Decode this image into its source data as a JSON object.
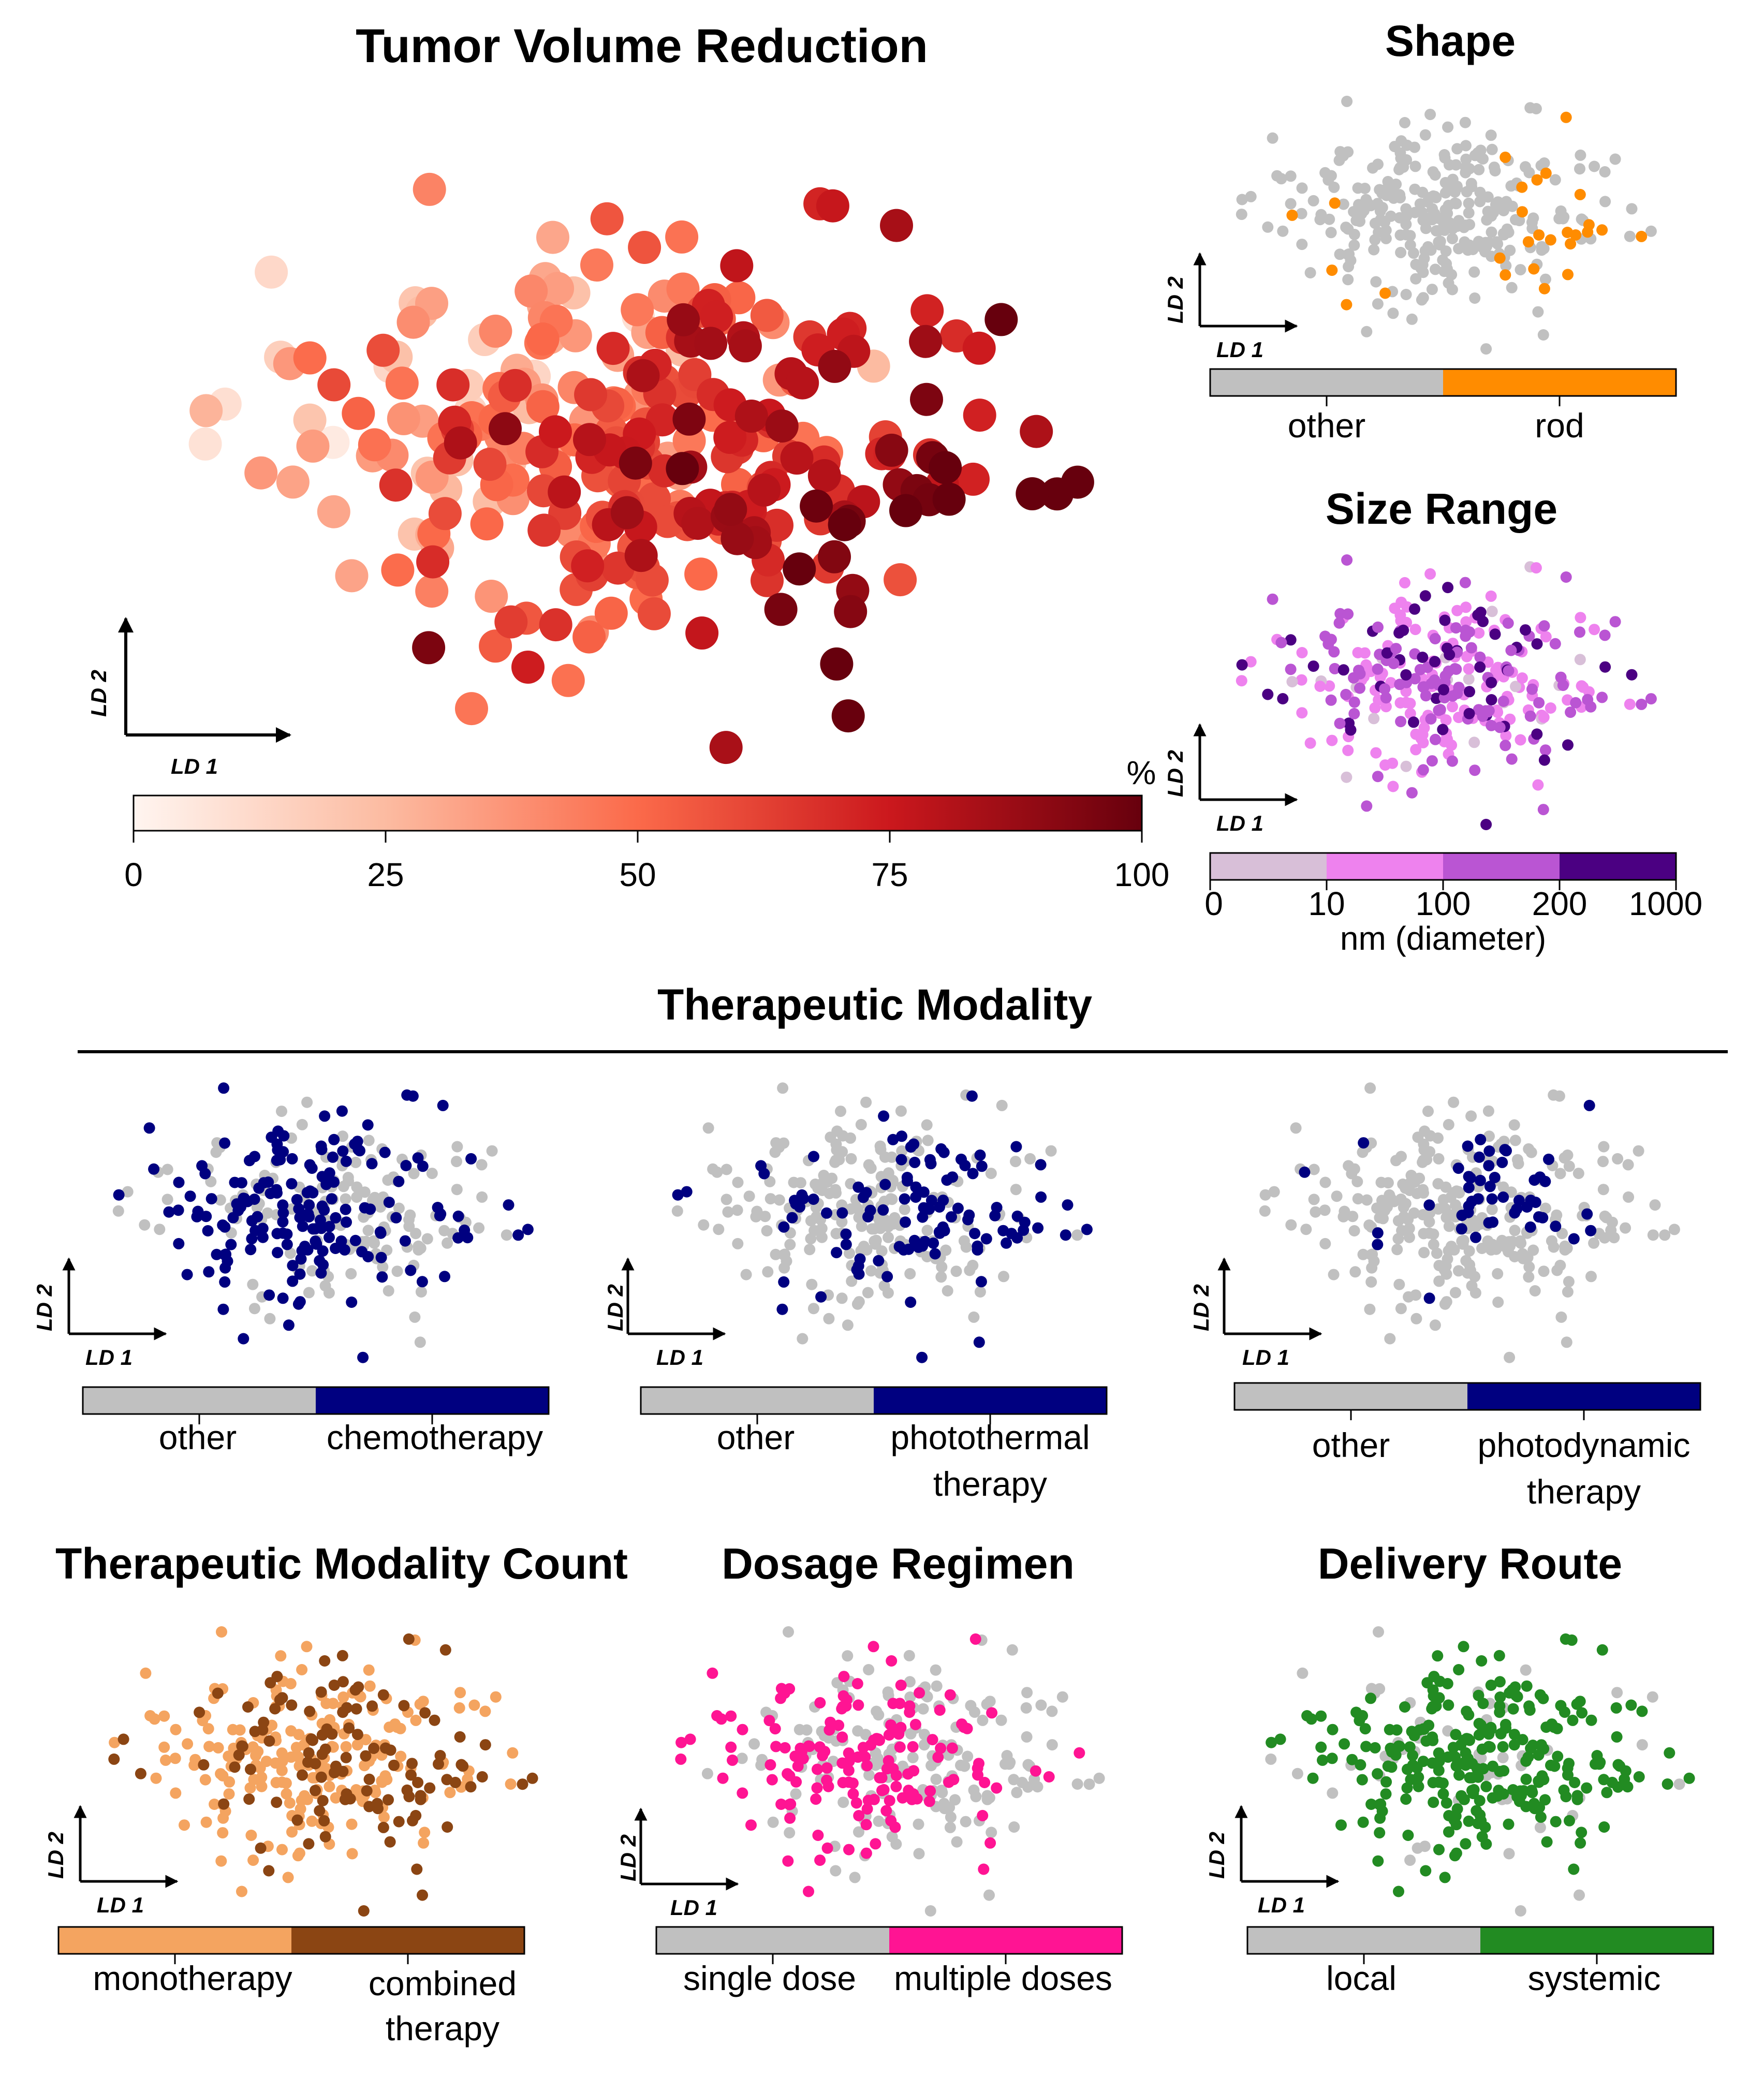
{
  "figure": {
    "main_title": "Tumor Volume Reduction",
    "section_title": "Therapeutic Modality",
    "axis_x": "LD 1",
    "axis_y": "LD 2"
  },
  "colors": {
    "gray": "#c0c0c0",
    "rod": "#ff8c00",
    "navy": "#000080",
    "mono": "#f4a460",
    "combined": "#8b4513",
    "pink": "#ff1493",
    "green": "#228b22",
    "size_bins": [
      "#d8bfd8",
      "#ee82ee",
      "#ba55d3",
      "#4b0082"
    ],
    "reds_scale": [
      "#fff5f0",
      "#fcbba1",
      "#fb6a4a",
      "#cb181d",
      "#67000d"
    ]
  },
  "chart_data": [
    {
      "id": "tumor",
      "type": "scatter",
      "title": "Tumor Volume Reduction",
      "xlabel": "LD 1",
      "ylabel": "LD 2",
      "color_variable": "tumor volume reduction",
      "colorbar": {
        "unit": "%",
        "range": [
          0,
          100
        ],
        "ticks": [
          "0",
          "25",
          "50",
          "75",
          "100"
        ],
        "cmap": "reds"
      },
      "n_points": 320,
      "x_range": [
        -4.6,
        5.0
      ],
      "y_range": [
        -3.3,
        3.1
      ]
    },
    {
      "id": "shape",
      "type": "scatter",
      "title": "Shape",
      "xlabel": "LD 1",
      "ylabel": "LD 2",
      "categories": [
        "other",
        "rod"
      ],
      "category_colors": [
        "#c0c0c0",
        "#ff8c00"
      ]
    },
    {
      "id": "size",
      "type": "scatter",
      "title": "Size Range",
      "xlabel": "LD 1",
      "ylabel": "LD 2",
      "colorbar": {
        "ticks": [
          "0",
          "10",
          "100",
          "200",
          "1000"
        ],
        "unit_label": "nm (diameter)"
      },
      "bins": [
        "0–10",
        "10–100",
        "100–200",
        "200–1000"
      ]
    },
    {
      "id": "chemo",
      "type": "scatter",
      "group": "Therapeutic Modality",
      "xlabel": "LD 1",
      "ylabel": "LD 2",
      "categories": [
        "other",
        "chemotherapy"
      ],
      "category_colors": [
        "#c0c0c0",
        "#000080"
      ]
    },
    {
      "id": "ptt",
      "type": "scatter",
      "group": "Therapeutic Modality",
      "xlabel": "LD 1",
      "ylabel": "LD 2",
      "categories": [
        "other",
        "photothermal therapy"
      ],
      "category_colors": [
        "#c0c0c0",
        "#000080"
      ]
    },
    {
      "id": "pdt",
      "type": "scatter",
      "group": "Therapeutic Modality",
      "xlabel": "LD 1",
      "ylabel": "LD 2",
      "categories": [
        "other",
        "photodynamic therapy"
      ],
      "category_colors": [
        "#c0c0c0",
        "#000080"
      ]
    },
    {
      "id": "count",
      "type": "scatter",
      "title": "Therapeutic Modality Count",
      "xlabel": "LD 1",
      "ylabel": "LD 2",
      "categories": [
        "monotherapy",
        "combined therapy"
      ],
      "category_colors": [
        "#f4a460",
        "#8b4513"
      ]
    },
    {
      "id": "dosage",
      "type": "scatter",
      "title": "Dosage Regimen",
      "xlabel": "LD 1",
      "ylabel": "LD 2",
      "categories": [
        "single dose",
        "multiple doses"
      ],
      "category_colors": [
        "#c0c0c0",
        "#ff1493"
      ]
    },
    {
      "id": "route",
      "type": "scatter",
      "title": "Delivery Route",
      "xlabel": "LD 1",
      "ylabel": "LD 2",
      "categories": [
        "local",
        "systemic"
      ],
      "category_colors": [
        "#c0c0c0",
        "#228b22"
      ]
    }
  ],
  "labels": {
    "tumor_unit": "%",
    "tumor_ticks": [
      "0",
      "25",
      "50",
      "75",
      "100"
    ],
    "shape": {
      "title": "Shape",
      "cats": [
        "other",
        "rod"
      ]
    },
    "size": {
      "title": "Size Range",
      "ticks": [
        "0",
        "10",
        "100",
        "200",
        "1000"
      ],
      "unit": "nm (diameter)"
    },
    "chemo": {
      "cats": [
        "other",
        "chemotherapy"
      ]
    },
    "ptt": {
      "other": "other",
      "line1": "photothermal",
      "line2": "therapy"
    },
    "pdt": {
      "other": "other",
      "line1": "photodynamic",
      "line2": "therapy"
    },
    "count": {
      "title": "Therapeutic Modality Count",
      "mono": "monotherapy",
      "line1": "combined",
      "line2": "therapy"
    },
    "dosage": {
      "title": "Dosage Regimen",
      "cats": [
        "single dose",
        "multiple doses"
      ]
    },
    "route": {
      "title": "Delivery Route",
      "cats": [
        "local",
        "systemic"
      ]
    }
  }
}
